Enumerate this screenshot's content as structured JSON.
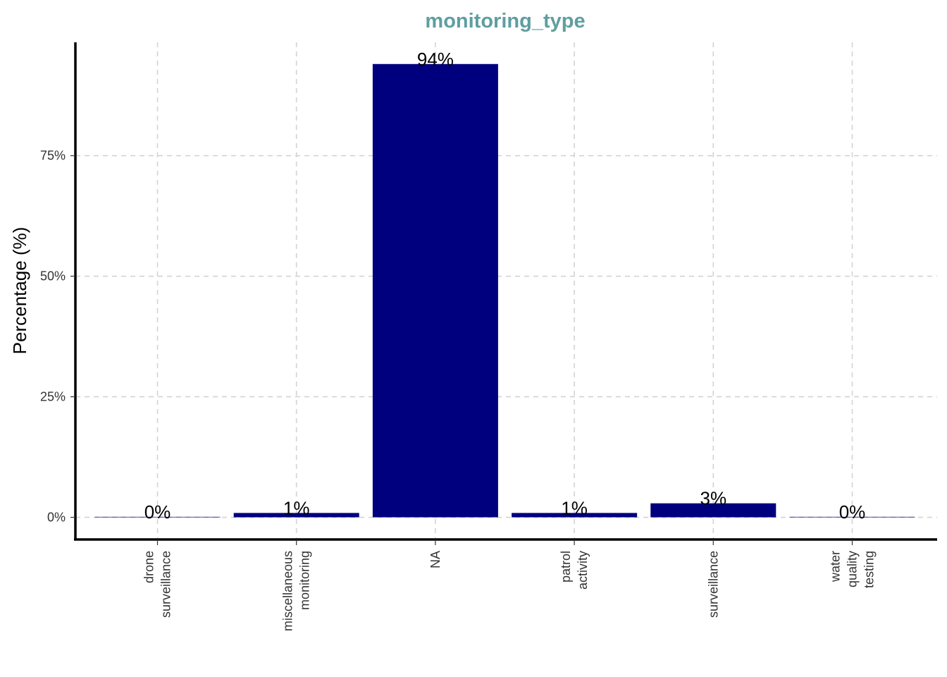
{
  "chart_data": {
    "type": "bar",
    "title": "monitoring_type",
    "xlabel": "",
    "ylabel": "Percentage (%)",
    "categories": [
      [
        "drone",
        "surveillance"
      ],
      [
        "miscellaneous",
        "monitoring"
      ],
      [
        "NA"
      ],
      [
        "patrol",
        "activity"
      ],
      [
        "surveillance"
      ],
      [
        "water",
        "quality",
        "testing"
      ]
    ],
    "values": [
      0.1,
      0.9,
      94,
      0.9,
      2.9,
      0.1
    ],
    "data_labels": [
      "0%",
      "1%",
      "94%",
      "1%",
      "3%",
      "0%"
    ],
    "yticks": [
      0,
      25,
      50,
      75
    ],
    "ytick_labels": [
      "0%",
      "25%",
      "50%",
      "75%"
    ],
    "ylim": [
      -4.6,
      98.5
    ],
    "grid": true,
    "grid_style": "dashed",
    "legend": "none",
    "colors": {
      "bar": "#00007F",
      "title": "#5F9EA0",
      "grid": "#D3D3D3",
      "axis": "#000000"
    }
  }
}
